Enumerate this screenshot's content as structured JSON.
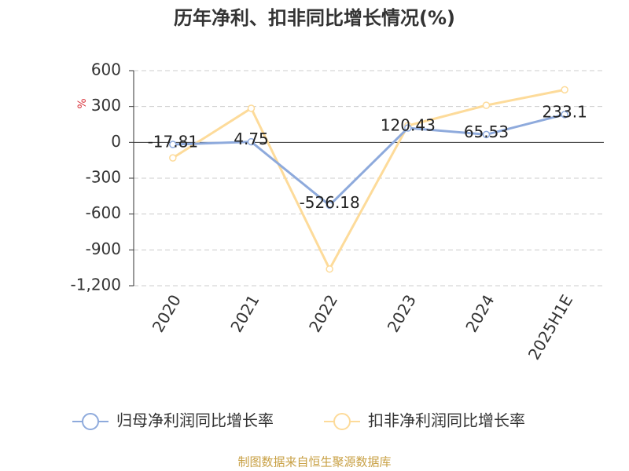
{
  "chart_data": {
    "type": "line",
    "title": "历年净利、扣非同比增长情况(%)",
    "y_unit": "%",
    "categories": [
      "2020",
      "2021",
      "2022",
      "2023",
      "2024",
      "2025H1E"
    ],
    "series": [
      {
        "name": "归母净利润同比增长率",
        "color": "#8eaadc",
        "values": [
          -17.81,
          4.75,
          -526.18,
          120.43,
          65.53,
          233.1
        ],
        "show_labels": true
      },
      {
        "name": "扣非净利润同比增长率",
        "color": "#fddb9a",
        "values": [
          -130,
          285,
          -1060,
          140,
          310,
          440
        ],
        "show_labels": false
      }
    ],
    "ylim": [
      -1200,
      600
    ],
    "yticks": [
      {
        "value": -1200,
        "label": "-1,200"
      },
      -900,
      -600,
      -300,
      0,
      300,
      600
    ],
    "grid": true,
    "footer": "制图数据来自恒生聚源数据库"
  }
}
